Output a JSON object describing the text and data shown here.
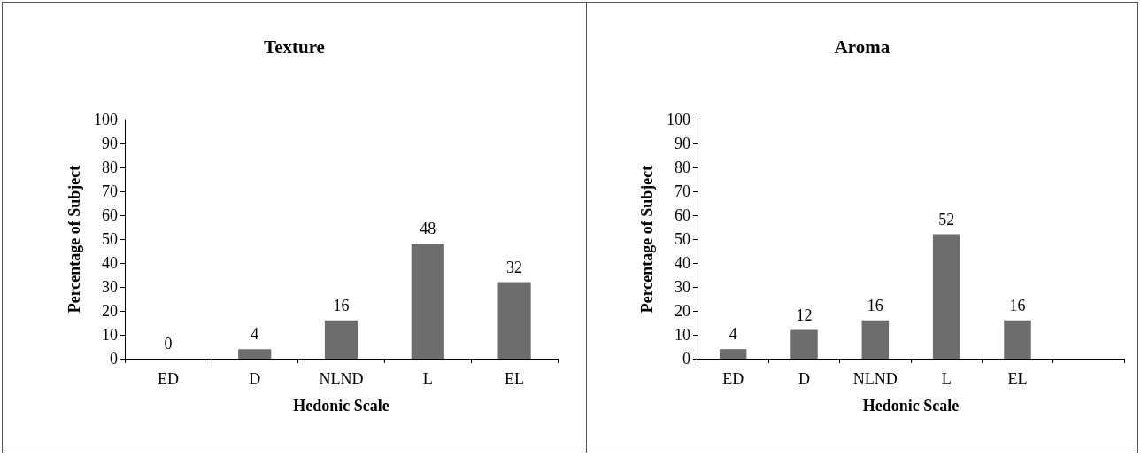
{
  "chart_data": [
    {
      "type": "bar",
      "title": "Texture",
      "xlabel": "Hedonic Scale",
      "ylabel": "Percentage of Subject",
      "categories": [
        "ED",
        "D",
        "NLND",
        "L",
        "EL"
      ],
      "values": [
        0,
        4,
        16,
        48,
        32
      ],
      "color": "#6d6d6e",
      "ylim": [
        0,
        100
      ],
      "yticks": [
        0,
        10,
        20,
        30,
        40,
        50,
        60,
        70,
        80,
        90,
        100
      ],
      "data_labels": true
    },
    {
      "type": "bar",
      "title": "Aroma",
      "xlabel": "Hedonic Scale",
      "ylabel": "Percentage of Subject",
      "categories": [
        "ED",
        "D",
        "NLND",
        "L",
        "EL",
        null
      ],
      "values": [
        4,
        12,
        16,
        52,
        16,
        null
      ],
      "color": "#6d6d6e",
      "ylim": [
        0,
        100
      ],
      "yticks": [
        0,
        10,
        20,
        30,
        40,
        50,
        60,
        70,
        80,
        90,
        100
      ],
      "data_labels": true
    }
  ]
}
